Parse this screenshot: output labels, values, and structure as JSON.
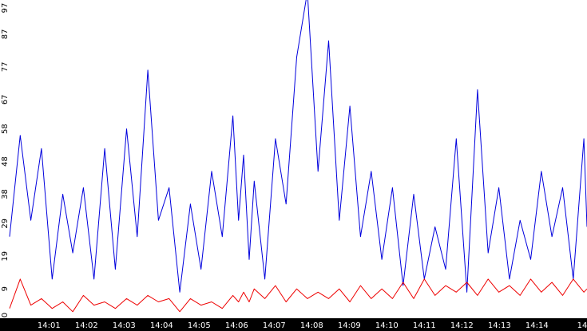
{
  "chart_data": {
    "type": "line",
    "title": "",
    "xlabel": "",
    "ylabel": "",
    "ylim": [
      0,
      97
    ],
    "xlim": [
      "13:59:57",
      "14:15:20"
    ],
    "grid": false,
    "legend": "none",
    "y_ticks": [
      "0",
      "9",
      "19",
      "29",
      "38",
      "48",
      "58",
      "67",
      "77",
      "87",
      "97"
    ],
    "x_ticks": [
      "14:01",
      "14:02",
      "14:03",
      "14:04",
      "14:05",
      "14:06",
      "14:07",
      "14:08",
      "14:09",
      "14:10",
      "14:11",
      "14:12",
      "14:13",
      "14:14",
      "14"
    ],
    "x": [
      "13:59:57",
      "14:00:14",
      "14:00:31",
      "14:00:48",
      "14:01:05",
      "14:01:22",
      "14:01:38",
      "14:01:55",
      "14:02:12",
      "14:02:29",
      "14:02:46",
      "14:03:04",
      "14:03:21",
      "14:03:38",
      "14:03:55",
      "14:04:12",
      "14:04:29",
      "14:04:46",
      "14:05:03",
      "14:05:20",
      "14:05:37",
      "14:05:54",
      "14:06:03",
      "14:06:11",
      "14:06:20",
      "14:06:28",
      "14:06:45",
      "14:07:02",
      "14:07:19",
      "14:07:36",
      "14:07:53",
      "14:08:10",
      "14:08:27",
      "14:08:44",
      "14:09:01",
      "14:09:18",
      "14:09:35",
      "14:09:52",
      "14:10:09",
      "14:10:26",
      "14:10:43",
      "14:11:00",
      "14:11:17",
      "14:11:34",
      "14:11:51",
      "14:12:08",
      "14:12:25",
      "14:12:42",
      "14:12:59",
      "14:13:16",
      "14:13:33",
      "14:13:50",
      "14:14:07",
      "14:14:24",
      "14:14:41",
      "14:14:58",
      "14:15:15",
      "14:15:20"
    ],
    "series": [
      {
        "color": "#0000dd",
        "values": [
          25,
          56,
          30,
          52,
          12,
          38,
          20,
          40,
          12,
          52,
          15,
          58,
          25,
          76,
          30,
          40,
          8,
          35,
          15,
          45,
          25,
          62,
          30,
          50,
          18,
          42,
          12,
          55,
          35,
          80,
          100,
          45,
          85,
          30,
          65,
          25,
          45,
          18,
          40,
          10,
          38,
          12,
          28,
          15,
          55,
          8,
          70,
          20,
          40,
          12,
          30,
          18,
          45,
          25,
          40,
          12,
          55,
          28
        ]
      },
      {
        "color": "#ee0000",
        "values": [
          3,
          12,
          4,
          6,
          3,
          5,
          2,
          7,
          4,
          5,
          3,
          6,
          4,
          7,
          5,
          6,
          2,
          6,
          4,
          5,
          3,
          7,
          5,
          8,
          5,
          9,
          6,
          10,
          5,
          9,
          6,
          8,
          6,
          9,
          5,
          10,
          6,
          9,
          6,
          11,
          6,
          12,
          7,
          10,
          8,
          11,
          7,
          12,
          8,
          10,
          7,
          12,
          8,
          11,
          7,
          12,
          8,
          9
        ]
      }
    ]
  }
}
